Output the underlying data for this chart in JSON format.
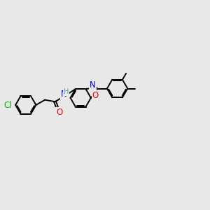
{
  "bg_color": "#e8e8e8",
  "bond_color": "#000000",
  "bond_width": 1.4,
  "atom_colors": {
    "Cl": "#00bb00",
    "O": "#ff0000",
    "N": "#0000ee",
    "H": "#44aacc",
    "C": "#000000"
  },
  "font_size": 8.5,
  "fig_width": 3.0,
  "fig_height": 3.0,
  "dpi": 100
}
